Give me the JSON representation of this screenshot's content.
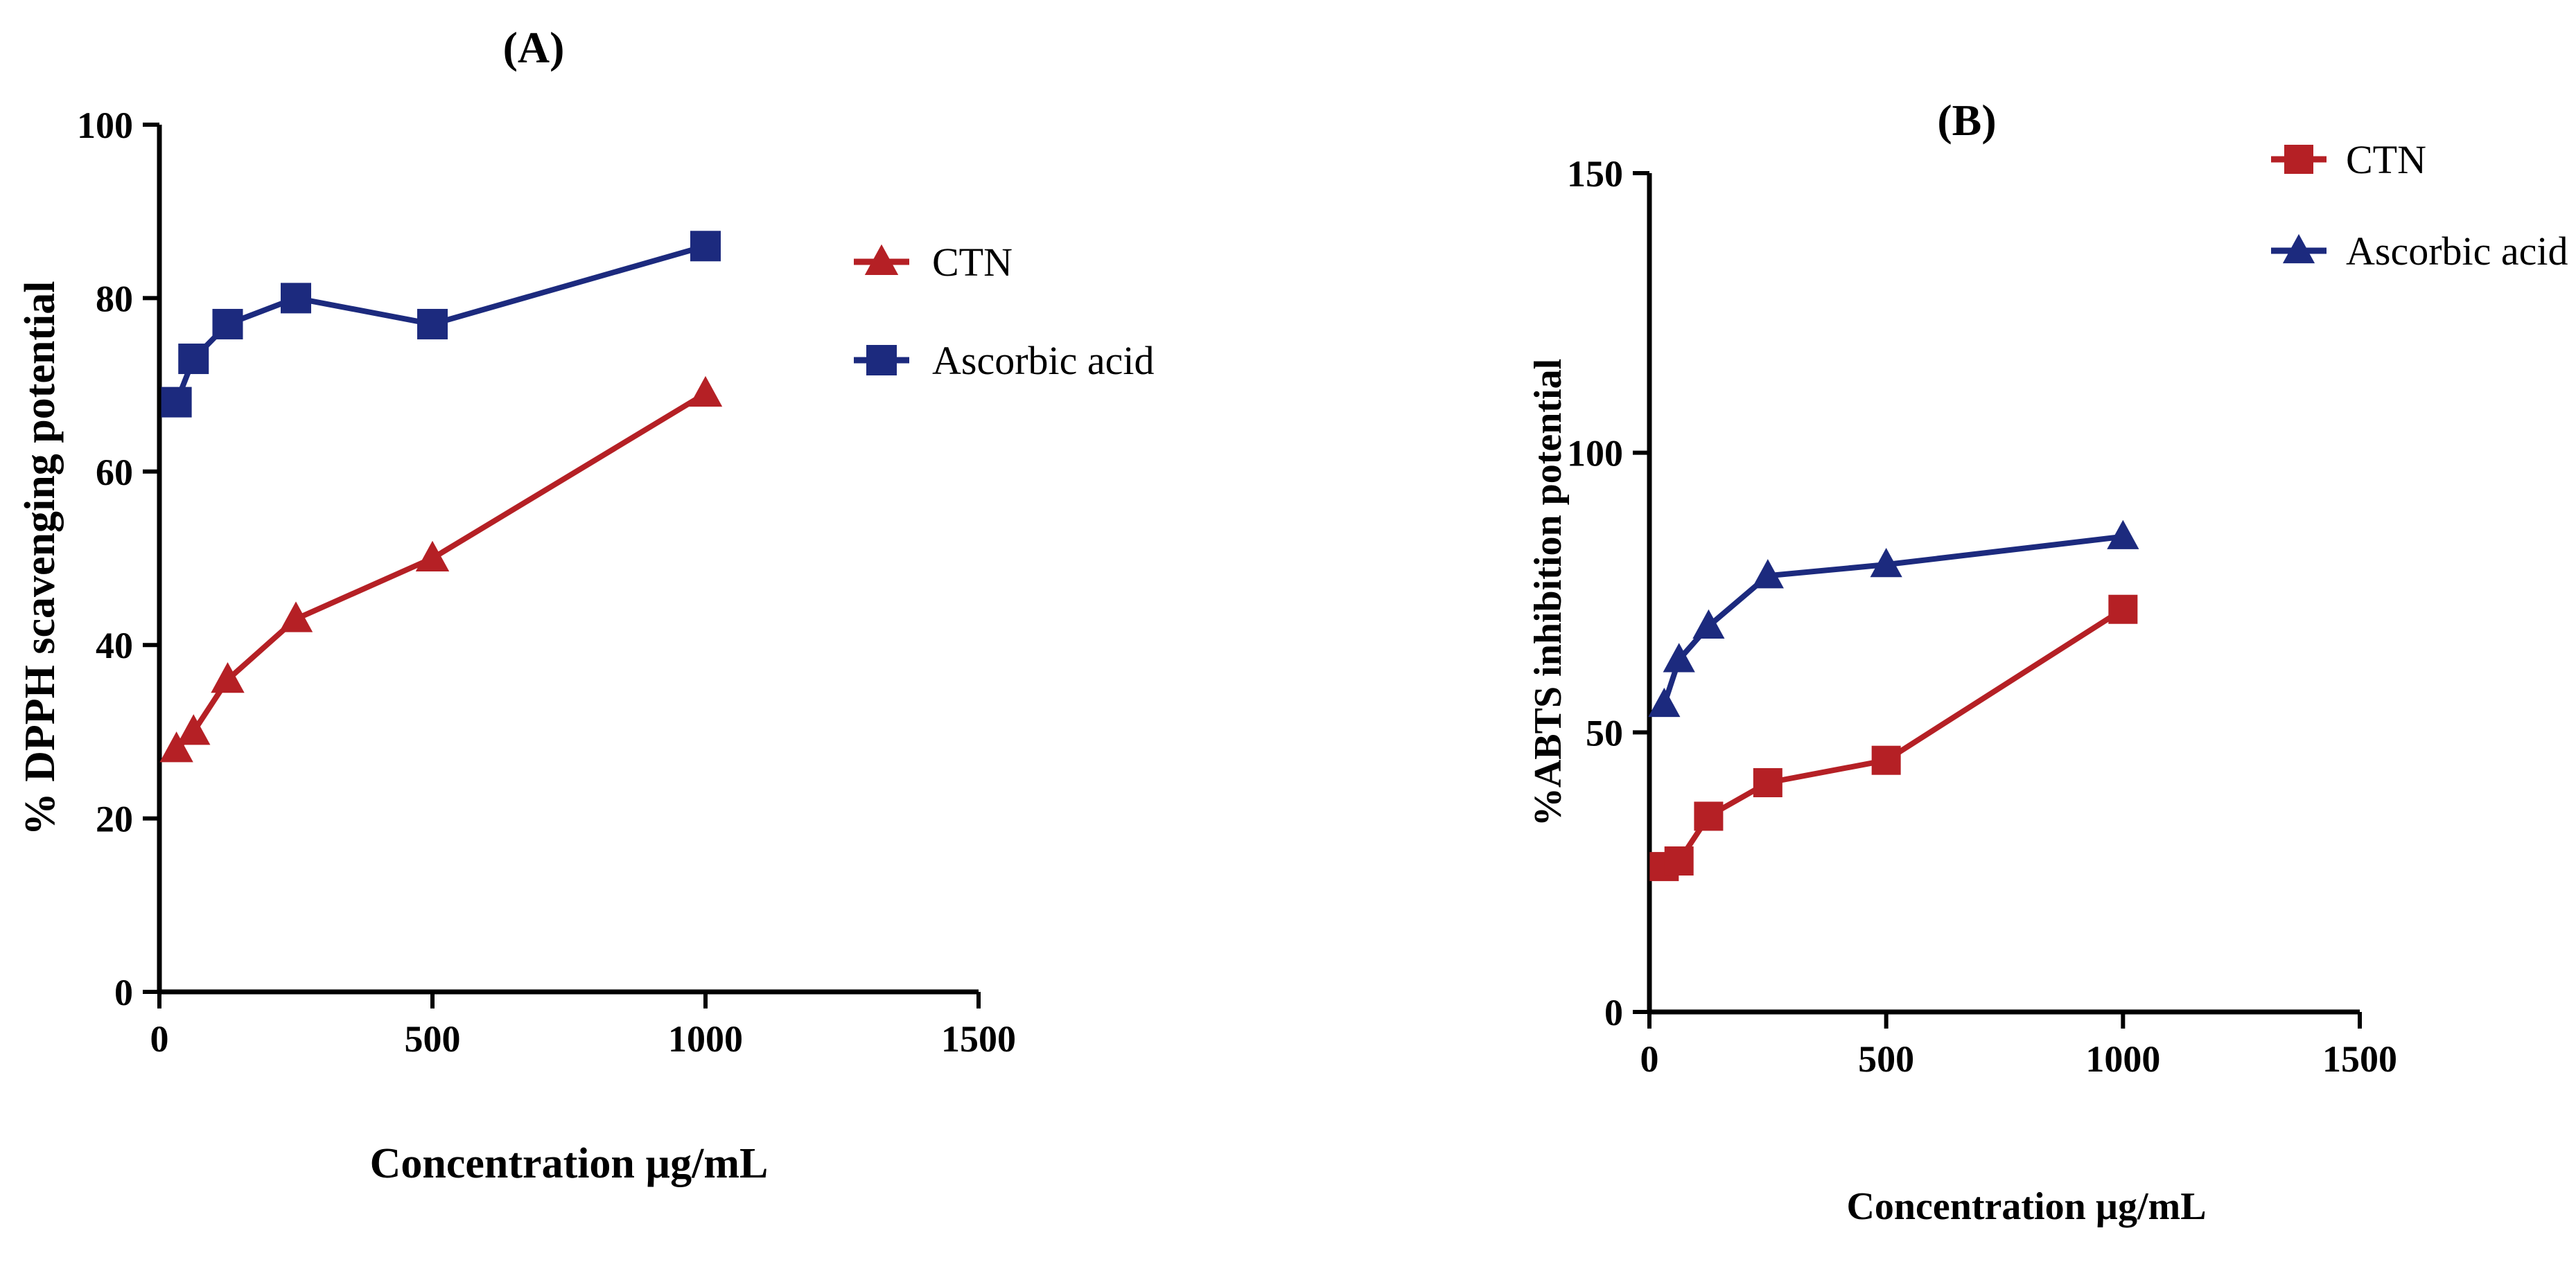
{
  "chart_data": [
    {
      "type": "line",
      "title": "(A)",
      "xlabel": "Concentration µg/mL",
      "ylabel": "% DPPH scavenging potential",
      "xlim": [
        0,
        1500
      ],
      "ylim": [
        0,
        100
      ],
      "xticks": [
        "0",
        "500",
        "1000",
        "1500"
      ],
      "yticks": [
        "0",
        "20",
        "40",
        "60",
        "80",
        "100"
      ],
      "series": [
        {
          "name": "CTN",
          "marker": "triangle",
          "color": "#b52025",
          "points": [
            [
              31.25,
              28
            ],
            [
              62.5,
              30
            ],
            [
              125,
              36
            ],
            [
              250,
              43
            ],
            [
              500,
              50
            ],
            [
              1000,
              69
            ]
          ]
        },
        {
          "name": "Ascorbic acid",
          "marker": "square",
          "color": "#1c2a7e",
          "points": [
            [
              31.25,
              68
            ],
            [
              62.5,
              73
            ],
            [
              125,
              77
            ],
            [
              250,
              80
            ],
            [
              500,
              77
            ],
            [
              1000,
              86
            ]
          ]
        }
      ]
    },
    {
      "type": "line",
      "title": "(B)",
      "xlabel": "Concentration µg/mL",
      "ylabel": "%ABTS inhibition potential",
      "xlim": [
        0,
        1500
      ],
      "ylim": [
        0,
        150
      ],
      "xticks": [
        "0",
        "500",
        "1000",
        "1500"
      ],
      "yticks": [
        "0",
        "50",
        "100",
        "150"
      ],
      "series": [
        {
          "name": "CTN",
          "marker": "square",
          "color": "#b52025",
          "points": [
            [
              31.25,
              26
            ],
            [
              62.5,
              27
            ],
            [
              125,
              35
            ],
            [
              250,
              41
            ],
            [
              500,
              45
            ],
            [
              1000,
              72
            ]
          ]
        },
        {
          "name": "Ascorbic acid",
          "marker": "triangle",
          "color": "#1c2a7e",
          "points": [
            [
              31.25,
              55
            ],
            [
              62.5,
              63
            ],
            [
              125,
              69
            ],
            [
              250,
              78
            ],
            [
              500,
              80
            ],
            [
              1000,
              85
            ]
          ]
        }
      ]
    }
  ]
}
